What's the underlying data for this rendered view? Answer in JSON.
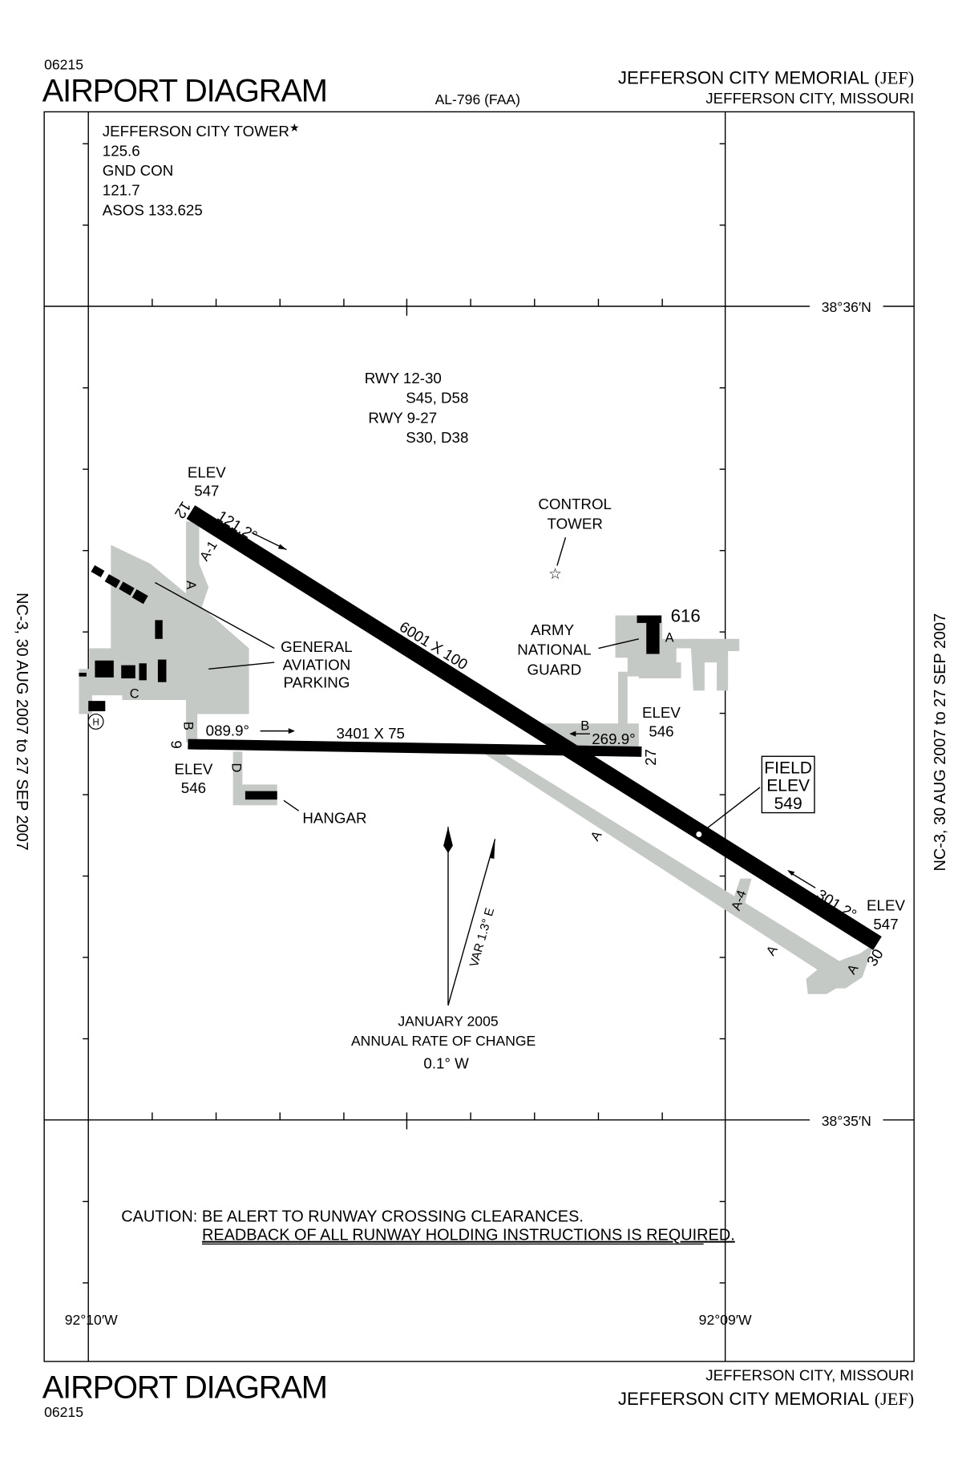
{
  "header": {
    "chart_number": "06215",
    "title": "AIRPORT DIAGRAM",
    "chart_id": "AL-796 (FAA)",
    "airport_name": "JEFFERSON CITY MEMORIAL",
    "airport_code": "(JEF)",
    "city_state": "JEFFERSON CITY, MISSOURI"
  },
  "footer": {
    "chart_number": "06215",
    "title": "AIRPORT DIAGRAM",
    "airport_name": "JEFFERSON CITY MEMORIAL",
    "airport_code": "(JEF)",
    "city_state": "JEFFERSON CITY, MISSOURI"
  },
  "margin_notes": {
    "left": "NC-3, 30 AUG 2007 to 27 SEP 2007",
    "right": "NC-3, 30 AUG 2007 to 27 SEP 2007"
  },
  "frequencies": {
    "tower_label": "JEFFERSON CITY TOWER",
    "tower_star": "★",
    "tower_freq": "125.6",
    "gnd_label": "GND CON",
    "gnd_freq": "121.7",
    "asos": "ASOS 133.625"
  },
  "coordinates": {
    "lat_top": "38°36′N",
    "lat_bottom": "38°35′N",
    "lon_left": "92°10′W",
    "lon_right": "92°09′W"
  },
  "runway_strength": {
    "rwy1": "RWY 12-30",
    "rwy1_val": "S45, D58",
    "rwy2": "RWY 9-27",
    "rwy2_val": "S30, D38"
  },
  "runways": {
    "r12": {
      "number": "12",
      "elev_label": "ELEV",
      "elev": "547",
      "heading": "121.2°"
    },
    "r30": {
      "number": "30",
      "elev_label": "ELEV",
      "elev": "547",
      "heading": "301.2°"
    },
    "r12_30_dims": "6001 X 100",
    "r9": {
      "number": "9",
      "elev_label": "ELEV",
      "elev": "546",
      "heading": "089.9°"
    },
    "r27": {
      "number": "27",
      "elev_label": "ELEV",
      "elev": "546",
      "heading": "269.9°"
    },
    "r9_27_dims": "3401 X 75"
  },
  "taxiways": {
    "a": "A",
    "a1": "A-1",
    "a4": "A-4",
    "b": "B",
    "c": "C",
    "d": "D",
    "h": "H"
  },
  "labels": {
    "control_tower_1": "CONTROL",
    "control_tower_2": "TOWER",
    "army_1": "ARMY",
    "army_2": "NATIONAL",
    "army_3": "GUARD",
    "obstacle": "616",
    "ga_1": "GENERAL",
    "ga_2": "AVIATION",
    "ga_3": "PARKING",
    "hangar": "HANGAR",
    "field_1": "FIELD",
    "field_2": "ELEV",
    "field_3": "549",
    "var": "VAR 1.3° E",
    "mag_1": "JANUARY 2005",
    "mag_2": "ANNUAL RATE OF CHANGE",
    "mag_3": "0.1° W"
  },
  "caution": {
    "line1": "CAUTION: BE ALERT TO RUNWAY CROSSING CLEARANCES.",
    "line2": "READBACK OF ALL RUNWAY HOLDING INSTRUCTIONS IS REQUIRED."
  }
}
